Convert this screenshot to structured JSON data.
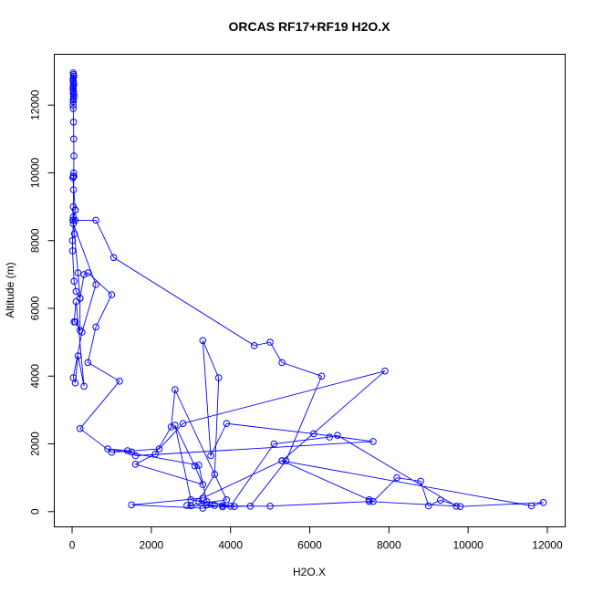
{
  "chart_data": {
    "type": "line",
    "title": "ORCAS RF17+RF19 H2O.X",
    "xlabel": "H2O.X",
    "ylabel": "Altitude (m)",
    "xlim": [
      -450,
      12450
    ],
    "ylim": [
      -450,
      13500
    ],
    "x_ticks": [
      0,
      2000,
      4000,
      6000,
      8000,
      10000,
      12000
    ],
    "y_ticks": [
      0,
      2000,
      4000,
      6000,
      8000,
      10000,
      12000
    ],
    "grid": false,
    "legend": "none",
    "color": "#0000ff",
    "series": [
      {
        "style": "line+points",
        "x": [
          30,
          35,
          40,
          30,
          25,
          30,
          35,
          40,
          30,
          25,
          30,
          35,
          30,
          45,
          40,
          35,
          30,
          30,
          25,
          30,
          35,
          40,
          45,
          40,
          45,
          35,
          30,
          20,
          80,
          30,
          80,
          600,
          1050,
          4600,
          5000,
          5300,
          6300,
          5400,
          4500,
          3800,
          3600,
          3400,
          3200,
          3600,
          3700,
          3300,
          3500,
          3900,
          6100,
          7600,
          1600,
          1500,
          1400,
          900,
          3200,
          3400,
          4000,
          5100,
          6500,
          6700,
          9700,
          7500,
          5000,
          3000,
          2900,
          3900,
          2600,
          2500,
          2100,
          1600,
          3300,
          3100,
          2600,
          3000,
          4100,
          3800,
          3300,
          1500,
          3300,
          5300,
          11600,
          11900,
          9800,
          9300,
          9000,
          8800,
          8200,
          7600,
          7500,
          5300,
          7900,
          2800,
          2200,
          1000,
          200,
          1200,
          400,
          600,
          1000,
          400,
          300,
          200,
          100,
          50,
          10,
          10,
          30,
          600,
          250,
          30,
          80,
          150,
          300,
          100,
          50,
          80,
          200,
          200,
          150,
          60,
          30,
          80,
          20,
          30
        ],
        "y": [
          12950,
          12900,
          12850,
          12800,
          12750,
          12700,
          12650,
          12600,
          12550,
          12500,
          12450,
          12400,
          12350,
          12300,
          12250,
          12200,
          12150,
          12100,
          12000,
          11900,
          11500,
          11000,
          10500,
          10000,
          9900,
          9500,
          9000,
          8600,
          8900,
          8700,
          8600,
          8600,
          7500,
          4900,
          5000,
          4400,
          4000,
          1500,
          160,
          140,
          180,
          200,
          300,
          1100,
          3950,
          5050,
          1650,
          2600,
          2300,
          2070,
          1650,
          1760,
          1800,
          1850,
          1370,
          300,
          160,
          2000,
          2200,
          2250,
          160,
          300,
          160,
          170,
          180,
          350,
          3600,
          2500,
          1700,
          1400,
          800,
          1350,
          2550,
          350,
          150,
          180,
          100,
          200,
          400,
          1500,
          170,
          270,
          150,
          340,
          170,
          900,
          1000,
          300,
          350,
          1500,
          4150,
          2600,
          1850,
          1750,
          2450,
          3850,
          4400,
          5450,
          6400,
          7050,
          7000,
          6300,
          6500,
          6800,
          7700,
          8000,
          8500,
          6700,
          5300,
          3950,
          3800,
          4600,
          3700,
          6200,
          5600,
          5600,
          5350,
          6300,
          7050,
          8200,
          8600,
          8900,
          9850,
          9900
        ]
      }
    ]
  }
}
